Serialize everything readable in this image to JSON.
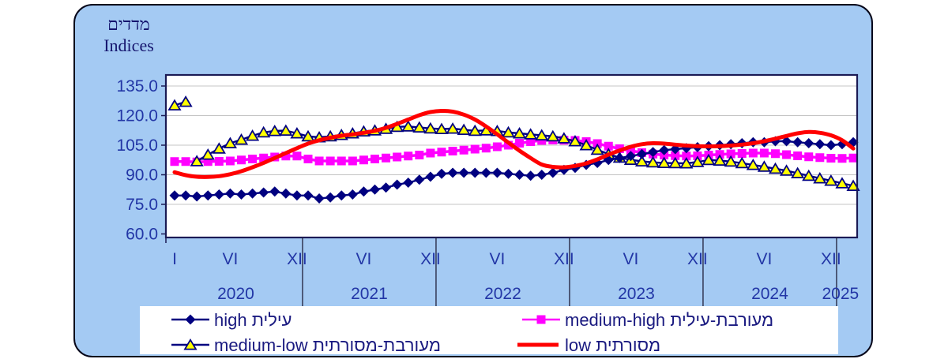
{
  "chart_data": {
    "type": "line",
    "title_he": "מדדים",
    "title_en": "Indices",
    "x_start": "2020-01",
    "x_end": "2025-02",
    "x_months_count": 62,
    "ylim": [
      60,
      140
    ],
    "yticks": [
      60.0,
      75.0,
      90.0,
      105.0,
      120.0,
      135.0
    ],
    "ytick_labels": [
      "60.0",
      "75.0",
      "90.0",
      "105.0",
      "120.0",
      "135.0"
    ],
    "grid": true,
    "x_ticks": [
      {
        "m": 0,
        "label": "I"
      },
      {
        "m": 5,
        "label": "VI"
      },
      {
        "m": 11,
        "label": "XII"
      },
      {
        "m": 17,
        "label": "VI"
      },
      {
        "m": 23,
        "label": "XII"
      },
      {
        "m": 29,
        "label": "VI"
      },
      {
        "m": 35,
        "label": "XII"
      },
      {
        "m": 41,
        "label": "VI"
      },
      {
        "m": 47,
        "label": "XII"
      },
      {
        "m": 53,
        "label": "VI"
      },
      {
        "m": 59,
        "label": "XII"
      }
    ],
    "year_separators_m": [
      11.5,
      23.5,
      35.5,
      47.5,
      59.5
    ],
    "year_labels": [
      {
        "label": "2020",
        "m": 5.5
      },
      {
        "label": "2021",
        "m": 17.5
      },
      {
        "label": "2022",
        "m": 29.5
      },
      {
        "label": "2023",
        "m": 41.5
      },
      {
        "label": "2024",
        "m": 53.5
      },
      {
        "label": "2025",
        "m": 59.85
      }
    ],
    "legend_position": "bottom",
    "series": [
      {
        "name": "high",
        "label": "high עילית",
        "color": "#000080",
        "marker": "diamond",
        "marker_fill": "#000080",
        "smooth": false,
        "values": [
          79.5,
          79.5,
          79,
          79.5,
          80,
          80.5,
          80,
          80.5,
          81,
          81.5,
          80.5,
          79.5,
          79.5,
          78,
          78.5,
          79.5,
          80,
          81.5,
          82.5,
          83.5,
          85,
          86,
          87.5,
          89,
          90.5,
          91,
          91,
          91,
          91,
          91,
          90.5,
          90,
          89.5,
          90,
          91,
          92.5,
          93.5,
          95,
          96,
          97.5,
          98.5,
          99.5,
          100.5,
          101.5,
          102.5,
          103,
          103.5,
          104,
          104.5,
          105,
          105.5,
          106,
          106.5,
          106.5,
          107,
          107,
          106.5,
          106,
          105.5,
          105,
          105.5,
          106.5
        ]
      },
      {
        "name": "medium-high",
        "label": "medium-high מעורבת-עילית",
        "color": "#ff00ff",
        "marker": "square",
        "marker_fill": "#ff00ff",
        "smooth": false,
        "values": [
          96.7,
          96.7,
          96.5,
          96.7,
          96.8,
          97,
          97.5,
          98,
          98.5,
          99,
          99.5,
          99.5,
          98,
          97,
          97,
          97,
          97,
          97.5,
          98,
          98.5,
          99,
          99.5,
          100,
          101,
          101.5,
          102,
          102.5,
          103,
          103.5,
          104.2,
          105,
          106,
          106.8,
          107.4,
          107.6,
          107.5,
          107.4,
          106.8,
          105.8,
          104.5,
          103.2,
          102.2,
          101.2,
          100.5,
          100,
          99.7,
          99.5,
          99.6,
          100,
          100.3,
          100.6,
          100.8,
          101,
          101,
          100.7,
          100.2,
          99.6,
          99.1,
          98.7,
          98.4,
          98.3,
          98.5
        ]
      },
      {
        "name": "medium-low",
        "label": "medium-low מעורבת-מסורתית",
        "color": "#000080",
        "marker": "triangle",
        "marker_fill": "#ffff00",
        "smooth": false,
        "line_break_after_index": 1,
        "values": [
          125.2,
          127,
          96.9,
          100.2,
          103.3,
          106,
          107.8,
          109.8,
          111.5,
          112.2,
          112.4,
          111,
          109.5,
          109,
          109.5,
          110.2,
          111,
          112,
          112.5,
          113.3,
          114.3,
          114.5,
          114,
          113.5,
          113.2,
          113.4,
          112.8,
          112.3,
          112.5,
          112.2,
          111.5,
          111,
          110.5,
          110,
          109.5,
          108.5,
          107,
          105,
          102.7,
          100.5,
          98.7,
          97.6,
          96.8,
          96.3,
          96,
          95.9,
          95.8,
          96.5,
          97.5,
          97.2,
          96.7,
          95.9,
          95,
          94.1,
          93.1,
          92.1,
          90.8,
          89.5,
          88.2,
          87,
          85.7,
          84.4
        ]
      },
      {
        "name": "low",
        "label": "low מסורתית",
        "color": "#ff0000",
        "marker": "none",
        "smooth": true,
        "values": [
          91.3,
          89.8,
          89,
          88.9,
          89.3,
          90.3,
          91.8,
          93.8,
          96,
          98.5,
          101,
          103.5,
          105.8,
          107.5,
          108.8,
          109.8,
          110.5,
          111.3,
          112.3,
          113.8,
          115.8,
          118,
          120.2,
          121.8,
          122.4,
          122,
          120.5,
          118,
          114.5,
          110.5,
          106.3,
          102.2,
          98.5,
          95.2,
          94,
          93.8,
          94.5,
          95.8,
          97.8,
          100.2,
          102.3,
          104.2,
          105.5,
          106,
          105.8,
          105.3,
          104.8,
          104.5,
          104.4,
          104.5,
          104.8,
          105.3,
          106,
          107,
          108.3,
          109.7,
          111,
          111.7,
          111.3,
          110,
          107.5,
          103.3
        ]
      }
    ],
    "colors": {
      "card_background": "#a4caf3",
      "plot_background": "#ffffff",
      "gridline": "#c4c4c4",
      "plot_border": "#1b1b55",
      "axis_text": "#2236a6",
      "legend_text": "#1a1a80",
      "title_text": "#15156e",
      "year_line": "#20203a"
    }
  }
}
